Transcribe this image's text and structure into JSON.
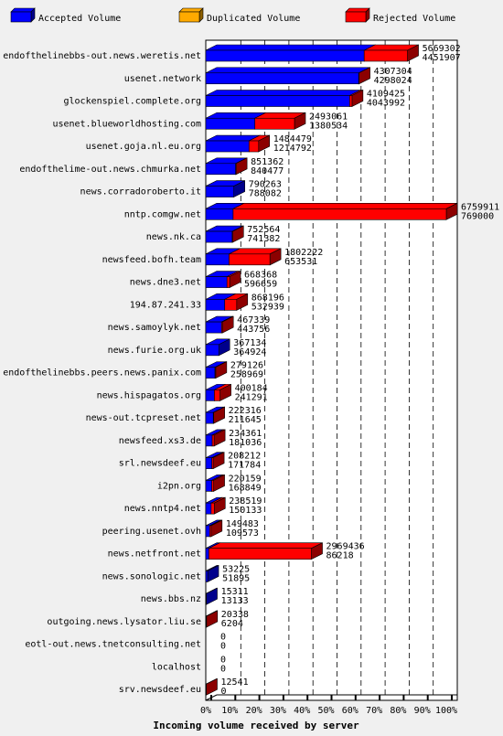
{
  "chart_data": {
    "type": "bar",
    "orientation": "horizontal",
    "stacked": true,
    "three_d": true,
    "xlabel": "Incoming volume received by server",
    "x_ticks": [
      "0%",
      "10%",
      "20%",
      "30%",
      "40%",
      "50%",
      "60%",
      "70%",
      "80%",
      "90%",
      "100%"
    ],
    "legend": [
      {
        "name": "Accepted Volume",
        "color": "#0000ff"
      },
      {
        "name": "Duplicated Volume",
        "color": "#ffaa00"
      },
      {
        "name": "Rejected Volume",
        "color": "#ff0000"
      }
    ],
    "legend_position": "top",
    "servers": [
      {
        "name": "endofthelinebbs-out.news.weretis.net",
        "total": 5669302,
        "accepted": 4451907,
        "dup_color": false
      },
      {
        "name": "usenet.network",
        "total": 4307304,
        "accepted": 4298024,
        "dup_color": false
      },
      {
        "name": "glockenspiel.complete.org",
        "total": 4109425,
        "accepted": 4043992,
        "dup_color": false
      },
      {
        "name": "usenet.blueworldhosting.com",
        "total": 2493061,
        "accepted": 1380534,
        "dup_color": false
      },
      {
        "name": "usenet.goja.nl.eu.org",
        "total": 1484479,
        "accepted": 1214792,
        "dup_color": false
      },
      {
        "name": "endofthelime-out.news.chmurka.net",
        "total": 851362,
        "accepted": 840477,
        "dup_color": false
      },
      {
        "name": "news.corradoroberto.it",
        "total": 790263,
        "accepted": 788082,
        "dup_color": true
      },
      {
        "name": "nntp.comgw.net",
        "total": 6759911,
        "accepted": 769000,
        "dup_color": false
      },
      {
        "name": "news.nk.ca",
        "total": 752564,
        "accepted": 741382,
        "dup_color": false
      },
      {
        "name": "newsfeed.bofh.team",
        "total": 1802222,
        "accepted": 653531,
        "dup_color": false
      },
      {
        "name": "news.dne3.net",
        "total": 668368,
        "accepted": 596659,
        "dup_color": false
      },
      {
        "name": "194.87.241.33",
        "total": 868196,
        "accepted": 532939,
        "dup_color": false
      },
      {
        "name": "news.samoylyk.net",
        "total": 467339,
        "accepted": 443756,
        "dup_color": false
      },
      {
        "name": "news.furie.org.uk",
        "total": 367134,
        "accepted": 364924,
        "dup_color": true
      },
      {
        "name": "endofthelinebbs.peers.news.panix.com",
        "total": 279126,
        "accepted": 258969,
        "dup_color": false
      },
      {
        "name": "news.hispagatos.org",
        "total": 400184,
        "accepted": 241291,
        "dup_color": false
      },
      {
        "name": "news-out.tcpreset.net",
        "total": 222316,
        "accepted": 211645,
        "dup_color": false
      },
      {
        "name": "newsfeed.xs3.de",
        "total": 234361,
        "accepted": 181036,
        "dup_color": false
      },
      {
        "name": "srl.newsdeef.eu",
        "total": 208212,
        "accepted": 171784,
        "dup_color": false
      },
      {
        "name": "i2pn.org",
        "total": 220159,
        "accepted": 168849,
        "dup_color": false
      },
      {
        "name": "news.nntp4.net",
        "total": 238519,
        "accepted": 150133,
        "dup_color": false
      },
      {
        "name": "peering.usenet.ovh",
        "total": 149483,
        "accepted": 109573,
        "dup_color": false
      },
      {
        "name": "news.netfront.net",
        "total": 2969436,
        "accepted": 86218,
        "dup_color": false
      },
      {
        "name": "news.sonologic.net",
        "total": 53225,
        "accepted": 51895,
        "dup_color": true
      },
      {
        "name": "news.bbs.nz",
        "total": 15311,
        "accepted": 13133,
        "dup_color": true
      },
      {
        "name": "outgoing.news.lysator.liu.se",
        "total": 20338,
        "accepted": 6204,
        "dup_color": false
      },
      {
        "name": "eotl-out.news.tnetconsulting.net",
        "total": 0,
        "accepted": 0,
        "dup_color": false
      },
      {
        "name": "localhost",
        "total": 0,
        "accepted": 0,
        "dup_color": false
      },
      {
        "name": "srv.newsdeef.eu",
        "total": 12541,
        "accepted": 0,
        "dup_color": false
      }
    ]
  }
}
